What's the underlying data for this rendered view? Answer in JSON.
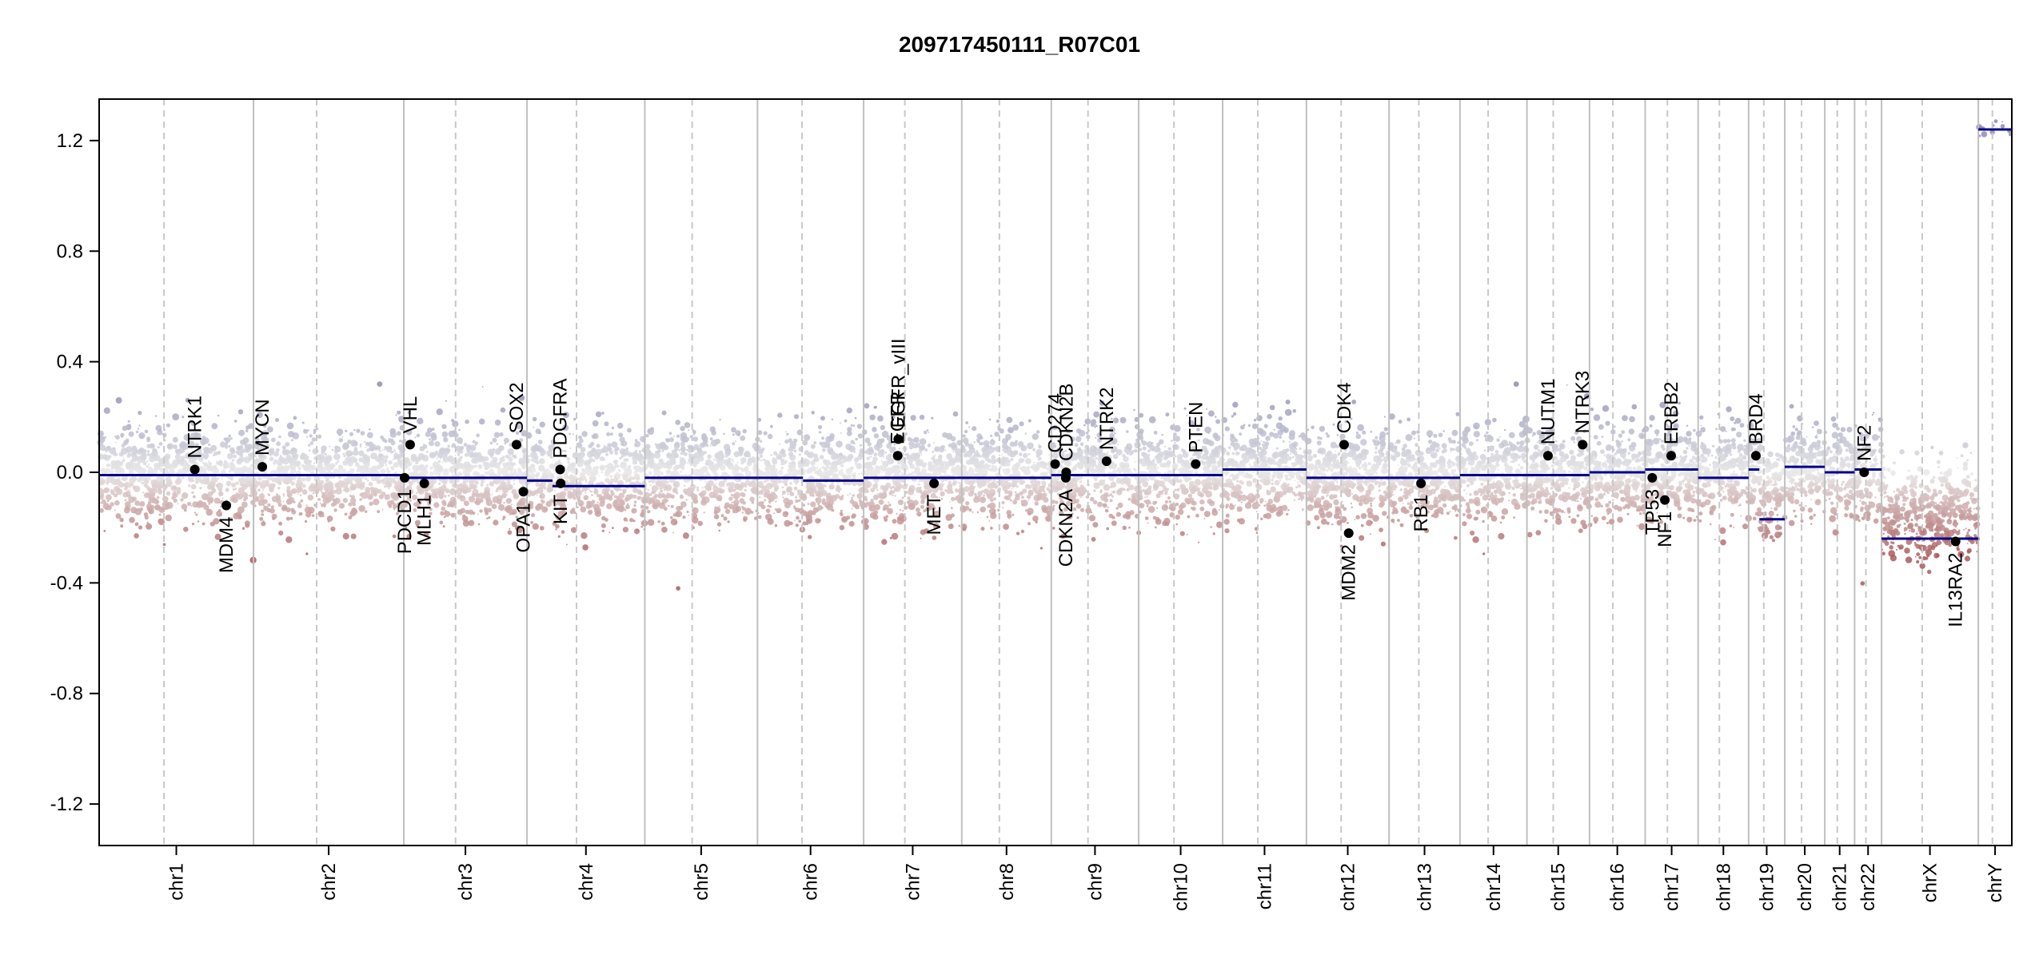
{
  "chart_data": {
    "type": "scatter",
    "title": "209717450111_R07C01",
    "xlabel": "",
    "ylabel": "",
    "ylim": [
      -1.35,
      1.35
    ],
    "yticks": [
      -1.2,
      -0.8,
      -0.4,
      0.0,
      0.4,
      0.8,
      1.2
    ],
    "ytick_labels": [
      "-1.2",
      "-0.8",
      "-0.4",
      "0.0",
      "0.4",
      "0.8",
      "1.2"
    ],
    "genome_length": 1000,
    "chromosomes": [
      {
        "name": "chr1",
        "start": 0,
        "end": 80.7,
        "segments": [
          {
            "from": 0,
            "to": 80.7,
            "value": -0.01
          }
        ]
      },
      {
        "name": "chr2",
        "start": 80.7,
        "end": 159.3,
        "segments": [
          {
            "from": 80.7,
            "to": 159.3,
            "value": -0.01
          }
        ]
      },
      {
        "name": "chr3",
        "start": 159.3,
        "end": 223.7,
        "segments": [
          {
            "from": 159.3,
            "to": 223.7,
            "value": -0.02
          }
        ]
      },
      {
        "name": "chr4",
        "start": 223.7,
        "end": 285.3,
        "segments": [
          {
            "from": 223.7,
            "to": 237.0,
            "value": -0.03
          },
          {
            "from": 237.0,
            "to": 285.3,
            "value": -0.05
          }
        ]
      },
      {
        "name": "chr5",
        "start": 285.3,
        "end": 344.2,
        "segments": [
          {
            "from": 285.3,
            "to": 344.2,
            "value": -0.02
          }
        ]
      },
      {
        "name": "chr6",
        "start": 344.2,
        "end": 399.7,
        "segments": [
          {
            "from": 344.2,
            "to": 368.0,
            "value": -0.02
          },
          {
            "from": 368.0,
            "to": 399.7,
            "value": -0.03
          }
        ]
      },
      {
        "name": "chr7",
        "start": 399.7,
        "end": 451.0,
        "segments": [
          {
            "from": 399.7,
            "to": 451.0,
            "value": -0.02
          }
        ]
      },
      {
        "name": "chr8",
        "start": 451.0,
        "end": 497.8,
        "segments": [
          {
            "from": 451.0,
            "to": 497.8,
            "value": -0.02
          }
        ]
      },
      {
        "name": "chr9",
        "start": 497.8,
        "end": 543.5,
        "segments": [
          {
            "from": 497.8,
            "to": 543.5,
            "value": -0.01
          }
        ]
      },
      {
        "name": "chr10",
        "start": 543.5,
        "end": 587.4,
        "segments": [
          {
            "from": 543.5,
            "to": 587.4,
            "value": -0.01
          }
        ]
      },
      {
        "name": "chr11",
        "start": 587.4,
        "end": 631.2,
        "segments": [
          {
            "from": 587.4,
            "to": 631.2,
            "value": 0.01
          }
        ]
      },
      {
        "name": "chr12",
        "start": 631.2,
        "end": 674.4,
        "segments": [
          {
            "from": 631.2,
            "to": 674.4,
            "value": -0.02
          }
        ]
      },
      {
        "name": "chr13",
        "start": 674.4,
        "end": 711.5,
        "segments": [
          {
            "from": 674.4,
            "to": 711.5,
            "value": -0.02
          }
        ]
      },
      {
        "name": "chr14",
        "start": 711.5,
        "end": 746.5,
        "segments": [
          {
            "from": 711.5,
            "to": 746.5,
            "value": -0.01
          }
        ]
      },
      {
        "name": "chr15",
        "start": 746.5,
        "end": 779.2,
        "segments": [
          {
            "from": 746.5,
            "to": 779.2,
            "value": -0.01
          }
        ]
      },
      {
        "name": "chr16",
        "start": 779.2,
        "end": 808.3,
        "segments": [
          {
            "from": 779.2,
            "to": 808.3,
            "value": 0.0
          }
        ]
      },
      {
        "name": "chr17",
        "start": 808.3,
        "end": 836.0,
        "segments": [
          {
            "from": 808.3,
            "to": 836.0,
            "value": 0.01
          }
        ]
      },
      {
        "name": "chr18",
        "start": 836.0,
        "end": 862.4,
        "segments": [
          {
            "from": 836.0,
            "to": 862.4,
            "value": -0.02
          }
        ]
      },
      {
        "name": "chr19",
        "start": 862.4,
        "end": 881.3,
        "segments": [
          {
            "from": 862.4,
            "to": 868.0,
            "value": 0.01
          },
          {
            "from": 868.0,
            "to": 881.3,
            "value": -0.17
          }
        ]
      },
      {
        "name": "chr20",
        "start": 881.3,
        "end": 902.2,
        "segments": [
          {
            "from": 881.3,
            "to": 902.2,
            "value": 0.02
          }
        ]
      },
      {
        "name": "chr21",
        "start": 902.2,
        "end": 917.8,
        "segments": [
          {
            "from": 902.2,
            "to": 917.8,
            "value": 0.0
          }
        ]
      },
      {
        "name": "chr22",
        "start": 917.8,
        "end": 931.9,
        "segments": [
          {
            "from": 917.8,
            "to": 931.9,
            "value": 0.01
          }
        ]
      },
      {
        "name": "chrX",
        "start": 931.9,
        "end": 982.5,
        "segments": [
          {
            "from": 931.9,
            "to": 982.5,
            "value": -0.24
          }
        ]
      },
      {
        "name": "chrY",
        "start": 982.5,
        "end": 1000,
        "segments": [
          {
            "from": 982.5,
            "to": 1000,
            "value": 1.24
          }
        ]
      }
    ],
    "genes": [
      {
        "name": "NTRK1",
        "pos": 50.0,
        "value": 0.01,
        "label": "above"
      },
      {
        "name": "MDM4",
        "pos": 66.5,
        "value": -0.12,
        "label": "below"
      },
      {
        "name": "MYCN",
        "pos": 85.3,
        "value": 0.02,
        "label": "above"
      },
      {
        "name": "VHL",
        "pos": 162.6,
        "value": 0.1,
        "label": "above"
      },
      {
        "name": "PDCD1",
        "pos": 159.7,
        "value": -0.02,
        "label": "below"
      },
      {
        "name": "MLH1",
        "pos": 170.0,
        "value": -0.04,
        "label": "below"
      },
      {
        "name": "SOX2",
        "pos": 218.2,
        "value": 0.1,
        "label": "above"
      },
      {
        "name": "OPA1",
        "pos": 221.8,
        "value": -0.07,
        "label": "below"
      },
      {
        "name": "PDGFRA",
        "pos": 241.0,
        "value": 0.01,
        "label": "above"
      },
      {
        "name": "KIT",
        "pos": 241.3,
        "value": -0.04,
        "label": "below"
      },
      {
        "name": "EGFR",
        "pos": 417.5,
        "value": 0.06,
        "label": "above"
      },
      {
        "name": "EGFR_vIII",
        "pos": 417.8,
        "value": 0.12,
        "label": "above"
      },
      {
        "name": "MET",
        "pos": 436.5,
        "value": -0.04,
        "label": "below"
      },
      {
        "name": "CD274",
        "pos": 499.8,
        "value": 0.03,
        "label": "above"
      },
      {
        "name": "CDKN2B",
        "pos": 505.6,
        "value": 0.0,
        "label": "above"
      },
      {
        "name": "CDKN2A",
        "pos": 505.4,
        "value": -0.02,
        "label": "below"
      },
      {
        "name": "NTRK2",
        "pos": 526.7,
        "value": 0.04,
        "label": "above"
      },
      {
        "name": "PTEN",
        "pos": 573.3,
        "value": 0.03,
        "label": "above"
      },
      {
        "name": "CDK4",
        "pos": 650.9,
        "value": 0.1,
        "label": "above"
      },
      {
        "name": "MDM2",
        "pos": 653.3,
        "value": -0.22,
        "label": "below"
      },
      {
        "name": "RB1",
        "pos": 691.1,
        "value": -0.04,
        "label": "below"
      },
      {
        "name": "NUTM1",
        "pos": 757.5,
        "value": 0.06,
        "label": "above"
      },
      {
        "name": "NTRK3",
        "pos": 775.6,
        "value": 0.1,
        "label": "above"
      },
      {
        "name": "TP53",
        "pos": 812.0,
        "value": -0.02,
        "label": "below"
      },
      {
        "name": "NF1",
        "pos": 818.6,
        "value": -0.1,
        "label": "below"
      },
      {
        "name": "ERBB2",
        "pos": 821.9,
        "value": 0.06,
        "label": "above"
      },
      {
        "name": "BRD4",
        "pos": 866.2,
        "value": 0.06,
        "label": "above"
      },
      {
        "name": "NF2",
        "pos": 922.8,
        "value": 0.0,
        "label": "above"
      },
      {
        "name": "IL13RA2",
        "pos": 970.6,
        "value": -0.25,
        "label": "below"
      }
    ]
  }
}
